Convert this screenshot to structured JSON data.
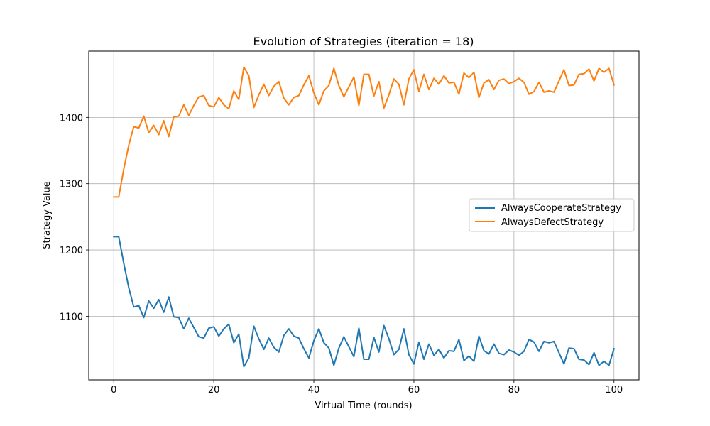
{
  "chart_data": {
    "type": "line",
    "title": "Evolution of Strategies (iteration = 18)",
    "xlabel": "Virtual Time (rounds)",
    "ylabel": "Strategy Value",
    "xlim": [
      -5,
      105
    ],
    "ylim": [
      1004,
      1500
    ],
    "xticks": [
      0,
      20,
      40,
      60,
      80,
      100
    ],
    "yticks": [
      1100,
      1200,
      1300,
      1400
    ],
    "grid": true,
    "legend_position": "center-right",
    "x": [
      0,
      1,
      2,
      3,
      4,
      5,
      6,
      7,
      8,
      9,
      10,
      11,
      12,
      13,
      14,
      15,
      16,
      17,
      18,
      19,
      20,
      21,
      22,
      23,
      24,
      25,
      26,
      27,
      28,
      29,
      30,
      31,
      32,
      33,
      34,
      35,
      36,
      37,
      38,
      39,
      40,
      41,
      42,
      43,
      44,
      45,
      46,
      47,
      48,
      49,
      50,
      51,
      52,
      53,
      54,
      55,
      56,
      57,
      58,
      59,
      60,
      61,
      62,
      63,
      64,
      65,
      66,
      67,
      68,
      69,
      70,
      71,
      72,
      73,
      74,
      75,
      76,
      77,
      78,
      79,
      80,
      81,
      82,
      83,
      84,
      85,
      86,
      87,
      88,
      89,
      90,
      91,
      92,
      93,
      94,
      95,
      96,
      97,
      98,
      99,
      100
    ],
    "series": [
      {
        "name": "AlwaysCooperateStrategy",
        "color": "#1f77b4",
        "values": [
          1220,
          1220,
          1180,
          1143,
          1114,
          1116,
          1098,
          1123,
          1112,
          1125,
          1106,
          1129,
          1099,
          1098,
          1081,
          1097,
          1083,
          1069,
          1067,
          1082,
          1084,
          1070,
          1081,
          1088,
          1060,
          1073,
          1024,
          1037,
          1085,
          1066,
          1050,
          1067,
          1053,
          1046,
          1071,
          1081,
          1070,
          1067,
          1051,
          1037,
          1063,
          1081,
          1060,
          1052,
          1026,
          1052,
          1069,
          1054,
          1039,
          1082,
          1035,
          1035,
          1068,
          1046,
          1086,
          1066,
          1042,
          1050,
          1081,
          1042,
          1028,
          1061,
          1035,
          1058,
          1041,
          1050,
          1037,
          1048,
          1047,
          1065,
          1033,
          1040,
          1032,
          1070,
          1048,
          1043,
          1058,
          1044,
          1042,
          1049,
          1046,
          1041,
          1047,
          1065,
          1061,
          1047,
          1062,
          1060,
          1062,
          1045,
          1028,
          1052,
          1051,
          1035,
          1034,
          1027,
          1045,
          1026,
          1032,
          1026,
          1051
        ]
      },
      {
        "name": "AlwaysDefectStrategy",
        "color": "#ff7f0e",
        "values": [
          1280,
          1280,
          1322,
          1358,
          1386,
          1384,
          1402,
          1377,
          1388,
          1374,
          1395,
          1371,
          1401,
          1402,
          1419,
          1403,
          1418,
          1431,
          1433,
          1418,
          1416,
          1430,
          1419,
          1413,
          1440,
          1427,
          1476,
          1463,
          1415,
          1434,
          1450,
          1433,
          1447,
          1454,
          1429,
          1419,
          1430,
          1433,
          1449,
          1463,
          1437,
          1419,
          1440,
          1448,
          1474,
          1448,
          1431,
          1446,
          1461,
          1418,
          1465,
          1465,
          1432,
          1454,
          1414,
          1434,
          1458,
          1450,
          1419,
          1458,
          1472,
          1439,
          1465,
          1442,
          1459,
          1450,
          1463,
          1452,
          1453,
          1435,
          1467,
          1460,
          1468,
          1430,
          1452,
          1457,
          1442,
          1456,
          1458,
          1451,
          1454,
          1459,
          1453,
          1435,
          1439,
          1453,
          1438,
          1440,
          1438,
          1455,
          1472,
          1448,
          1449,
          1465,
          1466,
          1473,
          1455,
          1474,
          1468,
          1474,
          1449
        ]
      }
    ]
  }
}
